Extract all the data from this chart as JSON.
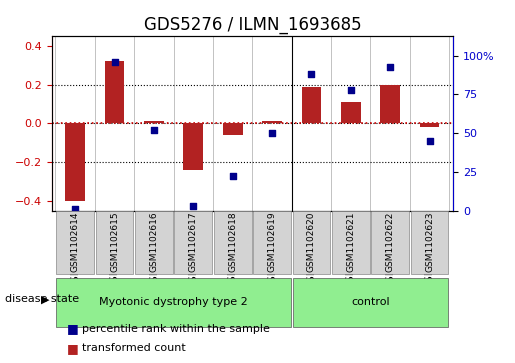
{
  "title": "GDS5276 / ILMN_1693685",
  "samples": [
    "GSM1102614",
    "GSM1102615",
    "GSM1102616",
    "GSM1102617",
    "GSM1102618",
    "GSM1102619",
    "GSM1102620",
    "GSM1102621",
    "GSM1102622",
    "GSM1102623"
  ],
  "red_values": [
    -0.4,
    0.32,
    0.01,
    -0.24,
    -0.06,
    0.01,
    0.19,
    0.11,
    0.2,
    -0.02
  ],
  "blue_values": [
    1,
    96,
    52,
    3,
    22,
    50,
    88,
    78,
    93,
    45
  ],
  "ylim_left": [
    -0.45,
    0.45
  ],
  "ylim_right": [
    0,
    112.5
  ],
  "yticks_left": [
    -0.4,
    -0.2,
    0.0,
    0.2,
    0.4
  ],
  "yticks_right": [
    0,
    25,
    50,
    75,
    100
  ],
  "ytick_labels_right": [
    "0",
    "25",
    "50",
    "75",
    "100%"
  ],
  "groups": [
    {
      "label": "Myotonic dystrophy type 2",
      "start": 0,
      "end": 6,
      "color": "#90ee90"
    },
    {
      "label": "control",
      "start": 6,
      "end": 10,
      "color": "#90ee90"
    }
  ],
  "disease_state_label": "disease state",
  "legend_items": [
    {
      "color": "#b22222",
      "label": "transformed count"
    },
    {
      "color": "#00008b",
      "label": "percentile rank within the sample"
    }
  ],
  "bar_color": "#b22222",
  "dot_color": "#00008b",
  "red_line_color": "#cc0000",
  "bg_color": "#ffffff",
  "plot_bg": "#ffffff",
  "grid_color": "#000000",
  "axis_color_left": "#cc0000",
  "axis_color_right": "#0000cc",
  "title_fontsize": 12,
  "tick_fontsize": 8,
  "label_fontsize": 9,
  "bar_width": 0.5
}
